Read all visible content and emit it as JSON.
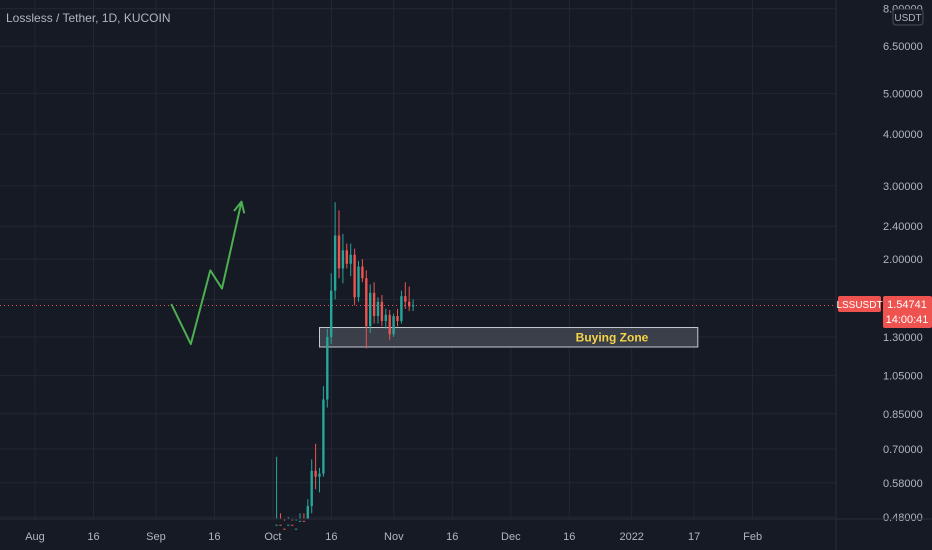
{
  "symbol_title": "Lossless / Tether, 1D, KUCOIN",
  "currency": "USDT",
  "colors": {
    "background": "#161a25",
    "grid": "#242733",
    "text": "#b2b5be",
    "up": "#26a69a",
    "down": "#ef5350",
    "price_line": "#ef5350",
    "arrow": "#4caf50",
    "zone_fill": "#3b3f4a",
    "zone_label": "#f5d547"
  },
  "price_badge": {
    "ticker": "LSSUSDT",
    "price": "1.54741",
    "countdown": "14:00:41"
  },
  "annotation": {
    "zone_label": "Buying Zone",
    "zone_low": 1.23,
    "zone_high": 1.37
  },
  "chart_data": {
    "type": "candlestick",
    "scale": "log",
    "y_ticks": [
      "0.48000",
      "0.58000",
      "0.70000",
      "0.85000",
      "1.05000",
      "1.30000",
      "1.60000",
      "2.00000",
      "2.40000",
      "3.00000",
      "4.00000",
      "5.00000",
      "6.50000",
      "8.00000"
    ],
    "x_ticks": [
      "Aug",
      "16",
      "Sep",
      "16",
      "Oct",
      "16",
      "Nov",
      "16",
      "Dec",
      "16",
      "2022",
      "17",
      "Feb"
    ],
    "last_price": 1.54741,
    "candles": [
      {
        "o": 0.4,
        "h": 0.67,
        "l": 0.38,
        "c": 0.46
      },
      {
        "o": 0.46,
        "h": 0.49,
        "l": 0.42,
        "c": 0.45
      },
      {
        "o": 0.45,
        "h": 0.47,
        "l": 0.41,
        "c": 0.44
      },
      {
        "o": 0.44,
        "h": 0.48,
        "l": 0.41,
        "c": 0.46
      },
      {
        "o": 0.46,
        "h": 0.47,
        "l": 0.42,
        "c": 0.43
      },
      {
        "o": 0.43,
        "h": 0.47,
        "l": 0.41,
        "c": 0.45
      },
      {
        "o": 0.45,
        "h": 0.49,
        "l": 0.42,
        "c": 0.47
      },
      {
        "o": 0.47,
        "h": 0.49,
        "l": 0.44,
        "c": 0.46
      },
      {
        "o": 0.46,
        "h": 0.53,
        "l": 0.45,
        "c": 0.51
      },
      {
        "o": 0.51,
        "h": 0.66,
        "l": 0.49,
        "c": 0.62
      },
      {
        "o": 0.62,
        "h": 0.72,
        "l": 0.56,
        "c": 0.6
      },
      {
        "o": 0.6,
        "h": 0.63,
        "l": 0.55,
        "c": 0.61
      },
      {
        "o": 0.61,
        "h": 0.99,
        "l": 0.6,
        "c": 0.92
      },
      {
        "o": 0.92,
        "h": 1.36,
        "l": 0.88,
        "c": 1.3
      },
      {
        "o": 1.3,
        "h": 1.85,
        "l": 1.25,
        "c": 1.68
      },
      {
        "o": 1.68,
        "h": 2.74,
        "l": 1.6,
        "c": 2.28
      },
      {
        "o": 2.28,
        "h": 2.62,
        "l": 1.8,
        "c": 1.9
      },
      {
        "o": 1.9,
        "h": 2.3,
        "l": 1.75,
        "c": 2.1
      },
      {
        "o": 2.1,
        "h": 2.18,
        "l": 1.9,
        "c": 1.95
      },
      {
        "o": 1.95,
        "h": 2.18,
        "l": 1.82,
        "c": 2.05
      },
      {
        "o": 2.05,
        "h": 2.12,
        "l": 1.55,
        "c": 1.62
      },
      {
        "o": 1.62,
        "h": 1.98,
        "l": 1.58,
        "c": 1.92
      },
      {
        "o": 1.92,
        "h": 2.0,
        "l": 1.76,
        "c": 1.8
      },
      {
        "o": 1.8,
        "h": 1.88,
        "l": 1.22,
        "c": 1.38
      },
      {
        "o": 1.38,
        "h": 1.74,
        "l": 1.33,
        "c": 1.66
      },
      {
        "o": 1.66,
        "h": 1.76,
        "l": 1.4,
        "c": 1.46
      },
      {
        "o": 1.46,
        "h": 1.62,
        "l": 1.4,
        "c": 1.58
      },
      {
        "o": 1.58,
        "h": 1.64,
        "l": 1.38,
        "c": 1.42
      },
      {
        "o": 1.42,
        "h": 1.52,
        "l": 1.36,
        "c": 1.47
      },
      {
        "o": 1.47,
        "h": 1.51,
        "l": 1.28,
        "c": 1.32
      },
      {
        "o": 1.32,
        "h": 1.48,
        "l": 1.3,
        "c": 1.46
      },
      {
        "o": 1.46,
        "h": 1.52,
        "l": 1.38,
        "c": 1.42
      },
      {
        "o": 1.42,
        "h": 1.68,
        "l": 1.4,
        "c": 1.63
      },
      {
        "o": 1.63,
        "h": 1.76,
        "l": 1.52,
        "c": 1.58
      },
      {
        "o": 1.58,
        "h": 1.72,
        "l": 1.5,
        "c": 1.54
      },
      {
        "o": 1.54,
        "h": 1.6,
        "l": 1.5,
        "c": 1.55
      }
    ],
    "projection": [
      {
        "i": 37,
        "v": 1.56
      },
      {
        "i": 42,
        "v": 1.25
      },
      {
        "i": 47,
        "v": 1.88
      },
      {
        "i": 50,
        "v": 1.7
      },
      {
        "i": 55,
        "v": 2.75
      }
    ]
  }
}
